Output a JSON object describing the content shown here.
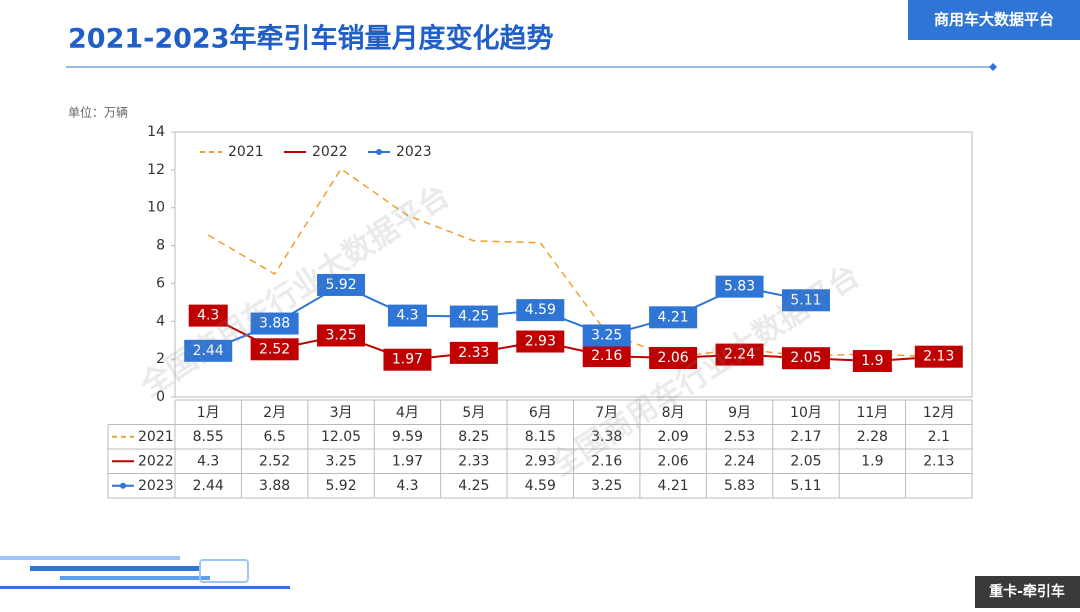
{
  "header": {
    "title": "2021-2023年牵引车销量月度变化趋势",
    "badge": "商用车大数据平台"
  },
  "footer": {
    "tag": "重卡-牵引车"
  },
  "watermark": "全国商用车行业大数据平台",
  "chart_data": {
    "type": "line",
    "unit_label": "单位：万辆",
    "categories": [
      "1月",
      "2月",
      "3月",
      "4月",
      "5月",
      "6月",
      "7月",
      "8月",
      "9月",
      "10月",
      "11月",
      "12月"
    ],
    "series": [
      {
        "name": "2021",
        "color": "#f0a030",
        "dashed": true,
        "markers": false,
        "labels": false,
        "values": [
          8.55,
          6.5,
          12.05,
          9.59,
          8.25,
          8.15,
          3.38,
          2.09,
          2.53,
          2.17,
          2.28,
          2.1
        ]
      },
      {
        "name": "2022",
        "color": "#c00000",
        "dashed": false,
        "markers": false,
        "labels": true,
        "values": [
          4.3,
          2.52,
          3.25,
          1.97,
          2.33,
          2.93,
          2.16,
          2.06,
          2.24,
          2.05,
          1.9,
          2.13
        ]
      },
      {
        "name": "2023",
        "color": "#2e75d6",
        "dashed": false,
        "markers": true,
        "labels": true,
        "values": [
          2.44,
          3.88,
          5.92,
          4.3,
          4.25,
          4.59,
          3.25,
          4.21,
          5.83,
          5.11,
          null,
          null
        ]
      }
    ],
    "ylim": [
      0,
      14
    ],
    "yticks": [
      0,
      2,
      4,
      6,
      8,
      10,
      12,
      14
    ],
    "legend": "top-left",
    "data_table": true
  }
}
